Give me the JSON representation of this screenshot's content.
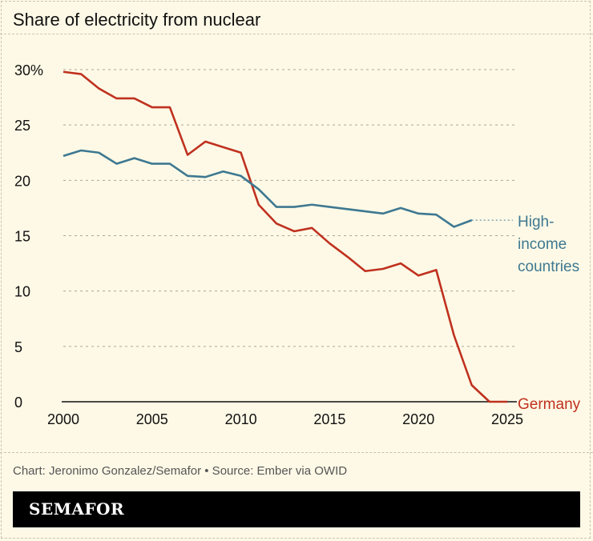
{
  "chart_data": {
    "type": "line",
    "title": "Share of electricity from nuclear",
    "xlim": [
      2000,
      2025
    ],
    "ylim": [
      0,
      30
    ],
    "x_ticks": [
      2000,
      2005,
      2010,
      2015,
      2020,
      2025
    ],
    "y_ticks": [
      0,
      5,
      10,
      15,
      20,
      25,
      30
    ],
    "y_tick_labels": [
      "0",
      "5",
      "10",
      "15",
      "20",
      "25",
      "30%"
    ],
    "grid": "horizontal dotted",
    "series": [
      {
        "name": "Germany",
        "color": "#c0311f",
        "x": [
          2000,
          2001,
          2002,
          2003,
          2004,
          2005,
          2006,
          2007,
          2008,
          2009,
          2010,
          2011,
          2012,
          2013,
          2014,
          2015,
          2016,
          2017,
          2018,
          2019,
          2020,
          2021,
          2022,
          2023,
          2024,
          2025
        ],
        "values": [
          29.8,
          29.6,
          28.3,
          27.4,
          27.4,
          26.6,
          26.6,
          22.3,
          23.5,
          23.0,
          22.5,
          17.8,
          16.1,
          15.4,
          15.7,
          14.3,
          13.1,
          11.8,
          12.0,
          12.5,
          11.4,
          11.9,
          6.0,
          1.5,
          0,
          0
        ]
      },
      {
        "name": "High-income countries",
        "label_lines": [
          "High-",
          "income",
          "countries"
        ],
        "color": "#3e7891",
        "x": [
          2000,
          2001,
          2002,
          2003,
          2004,
          2005,
          2006,
          2007,
          2008,
          2009,
          2010,
          2011,
          2012,
          2013,
          2014,
          2015,
          2016,
          2017,
          2018,
          2019,
          2020,
          2021,
          2022,
          2023
        ],
        "values": [
          22.2,
          22.7,
          22.5,
          21.5,
          22.0,
          21.5,
          21.5,
          20.4,
          20.3,
          20.8,
          20.4,
          19.2,
          17.6,
          17.6,
          17.8,
          17.6,
          17.4,
          17.2,
          17.0,
          17.5,
          17.0,
          16.9,
          15.8,
          16.4
        ]
      }
    ]
  },
  "footer": {
    "credit": "Chart: Jeronimo Gonzalez/Semafor • Source: Ember via OWID",
    "logo": "SEMAFOR"
  }
}
